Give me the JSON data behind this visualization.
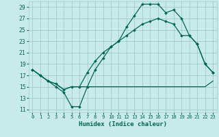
{
  "xlabel": "Humidex (Indice chaleur)",
  "bg_color": "#c8eaea",
  "grid_color": "#a0cccc",
  "line_color": "#006655",
  "xlim": [
    -0.5,
    23.5
  ],
  "ylim": [
    10.5,
    30.0
  ],
  "xticks": [
    0,
    1,
    2,
    3,
    4,
    5,
    6,
    7,
    8,
    9,
    10,
    11,
    12,
    13,
    14,
    15,
    16,
    17,
    18,
    19,
    20,
    21,
    22,
    23
  ],
  "yticks": [
    11,
    13,
    15,
    17,
    19,
    21,
    23,
    25,
    27,
    29
  ],
  "line1_x": [
    0,
    1,
    2,
    3,
    4,
    5,
    6,
    7,
    8,
    9,
    10,
    11,
    12,
    13,
    14,
    15,
    16,
    17,
    18,
    19,
    20,
    21,
    22,
    23
  ],
  "line1_y": [
    18,
    17,
    16,
    15,
    14,
    11.5,
    11.5,
    15,
    18,
    20,
    22,
    23,
    25.5,
    27.5,
    29.5,
    29.5,
    29.5,
    28,
    28.5,
    27,
    24,
    22.5,
    19,
    17.5
  ],
  "line2_x": [
    0,
    1,
    2,
    3,
    4,
    5,
    6,
    7,
    8,
    9,
    10,
    11,
    12,
    13,
    14,
    15,
    16,
    17,
    18,
    19,
    20,
    21,
    22,
    23
  ],
  "line2_y": [
    18,
    17,
    16,
    15.5,
    14.5,
    15,
    15,
    15,
    15,
    15,
    15,
    15,
    15,
    15,
    15,
    15,
    15,
    15,
    15,
    15,
    15,
    15,
    15,
    16
  ],
  "line3_x": [
    0,
    1,
    2,
    3,
    4,
    5,
    6,
    7,
    8,
    9,
    10,
    11,
    12,
    13,
    14,
    15,
    16,
    17,
    18,
    19,
    20,
    21,
    22,
    23
  ],
  "line3_y": [
    18,
    17,
    16,
    15.5,
    14.5,
    15,
    15,
    17.5,
    19.5,
    21,
    22,
    23,
    24,
    25,
    26,
    26.5,
    27,
    26.5,
    26,
    24,
    24,
    22.5,
    19,
    17.5
  ]
}
